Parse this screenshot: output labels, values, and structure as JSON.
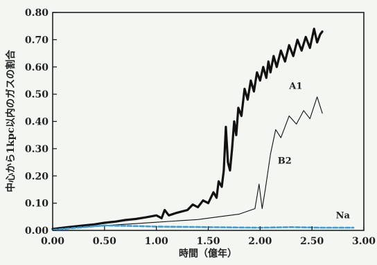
{
  "chart_data": {
    "type": "line",
    "xlabel": "時間（億年）",
    "ylabel": "中心から1kpc以内のガスの割合",
    "xlim": [
      0.0,
      3.0
    ],
    "ylim": [
      0.0,
      0.8
    ],
    "x_ticks": [
      "0.00",
      "0.50",
      "1.00",
      "1.50",
      "2.00",
      "2.50",
      "3.00"
    ],
    "y_ticks": [
      "0.00",
      "0.10",
      "0.20",
      "0.30",
      "0.40",
      "0.50",
      "0.60",
      "0.70",
      "0.80"
    ],
    "grid": false,
    "series": [
      {
        "name": "A1",
        "color": "#111111",
        "style": "thick",
        "points": [
          [
            0.0,
            0.005
          ],
          [
            0.1,
            0.01
          ],
          [
            0.2,
            0.014
          ],
          [
            0.3,
            0.018
          ],
          [
            0.4,
            0.022
          ],
          [
            0.5,
            0.028
          ],
          [
            0.6,
            0.032
          ],
          [
            0.7,
            0.038
          ],
          [
            0.8,
            0.042
          ],
          [
            0.9,
            0.048
          ],
          [
            1.0,
            0.055
          ],
          [
            1.05,
            0.045
          ],
          [
            1.08,
            0.075
          ],
          [
            1.12,
            0.055
          ],
          [
            1.2,
            0.065
          ],
          [
            1.3,
            0.075
          ],
          [
            1.35,
            0.095
          ],
          [
            1.4,
            0.085
          ],
          [
            1.45,
            0.11
          ],
          [
            1.5,
            0.1
          ],
          [
            1.55,
            0.14
          ],
          [
            1.58,
            0.12
          ],
          [
            1.6,
            0.18
          ],
          [
            1.63,
            0.16
          ],
          [
            1.65,
            0.22
          ],
          [
            1.67,
            0.38
          ],
          [
            1.69,
            0.25
          ],
          [
            1.71,
            0.22
          ],
          [
            1.73,
            0.3
          ],
          [
            1.75,
            0.4
          ],
          [
            1.77,
            0.35
          ],
          [
            1.79,
            0.45
          ],
          [
            1.82,
            0.42
          ],
          [
            1.85,
            0.52
          ],
          [
            1.88,
            0.48
          ],
          [
            1.91,
            0.55
          ],
          [
            1.94,
            0.51
          ],
          [
            1.97,
            0.58
          ],
          [
            2.0,
            0.55
          ],
          [
            2.03,
            0.6
          ],
          [
            2.06,
            0.56
          ],
          [
            2.08,
            0.62
          ],
          [
            2.1,
            0.58
          ],
          [
            2.13,
            0.64
          ],
          [
            2.16,
            0.6
          ],
          [
            2.2,
            0.66
          ],
          [
            2.24,
            0.62
          ],
          [
            2.28,
            0.68
          ],
          [
            2.32,
            0.64
          ],
          [
            2.36,
            0.7
          ],
          [
            2.4,
            0.66
          ],
          [
            2.44,
            0.71
          ],
          [
            2.48,
            0.67
          ],
          [
            2.52,
            0.74
          ],
          [
            2.55,
            0.69
          ],
          [
            2.58,
            0.72
          ],
          [
            2.6,
            0.73
          ]
        ]
      },
      {
        "name": "B2",
        "color": "#111111",
        "style": "thin",
        "points": [
          [
            0.0,
            0.005
          ],
          [
            0.2,
            0.01
          ],
          [
            0.4,
            0.015
          ],
          [
            0.6,
            0.02
          ],
          [
            0.8,
            0.025
          ],
          [
            1.0,
            0.03
          ],
          [
            1.2,
            0.035
          ],
          [
            1.4,
            0.04
          ],
          [
            1.6,
            0.05
          ],
          [
            1.8,
            0.06
          ],
          [
            1.95,
            0.08
          ],
          [
            1.99,
            0.17
          ],
          [
            2.02,
            0.08
          ],
          [
            2.05,
            0.15
          ],
          [
            2.1,
            0.28
          ],
          [
            2.15,
            0.37
          ],
          [
            2.2,
            0.34
          ],
          [
            2.28,
            0.42
          ],
          [
            2.35,
            0.39
          ],
          [
            2.42,
            0.44
          ],
          [
            2.48,
            0.41
          ],
          [
            2.55,
            0.49
          ],
          [
            2.6,
            0.43
          ]
        ]
      },
      {
        "name": "Na",
        "color": "#3a9fd8",
        "style": "dashed",
        "points": [
          [
            0.0,
            0.002
          ],
          [
            0.3,
            0.012
          ],
          [
            0.5,
            0.018
          ],
          [
            0.8,
            0.016
          ],
          [
            1.0,
            0.014
          ],
          [
            1.5,
            0.012
          ],
          [
            2.0,
            0.01
          ],
          [
            2.3,
            0.012
          ],
          [
            2.6,
            0.01
          ],
          [
            2.9,
            0.01
          ]
        ]
      }
    ]
  }
}
